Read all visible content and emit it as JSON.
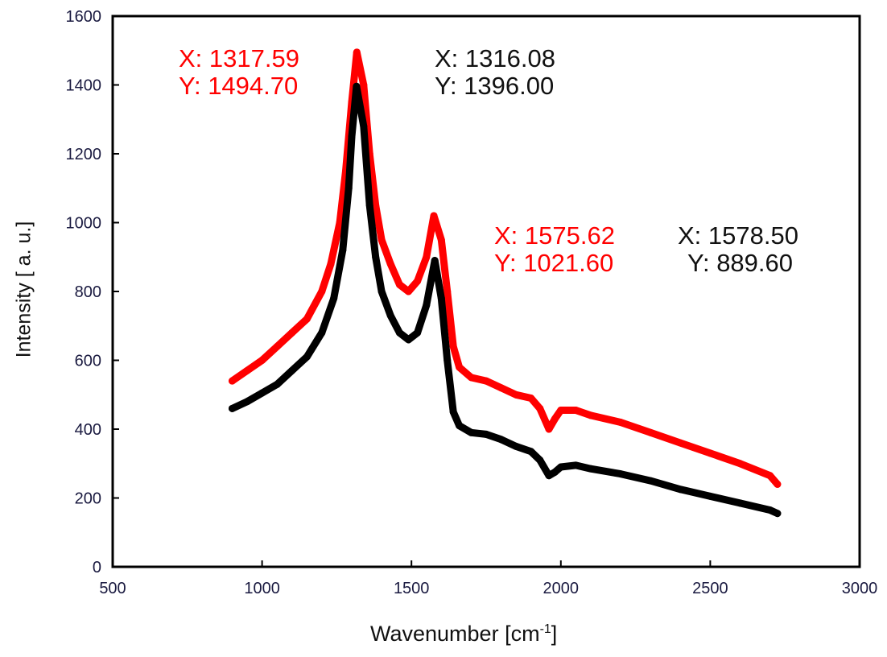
{
  "chart_data": {
    "type": "line",
    "title": "",
    "xlabel": "Wavenumber [cm",
    "xlabel_sup": "-1",
    "xlabel_end": "]",
    "ylabel": "Intensity [ a. u.]",
    "xlim": [
      500,
      3000
    ],
    "ylim": [
      0,
      1600
    ],
    "xticks": [
      "500",
      "1000",
      "1500",
      "2000",
      "2500",
      "3000"
    ],
    "yticks": [
      "0",
      "200",
      "400",
      "600",
      "800",
      "1000",
      "1200",
      "1400",
      "1600"
    ],
    "grid": false,
    "series": [
      {
        "name": "red",
        "color": "#ff0000",
        "x": [
          900,
          950,
          1000,
          1050,
          1100,
          1150,
          1200,
          1230,
          1260,
          1280,
          1300,
          1317,
          1340,
          1360,
          1380,
          1400,
          1430,
          1460,
          1490,
          1520,
          1550,
          1575,
          1600,
          1620,
          1640,
          1660,
          1700,
          1750,
          1800,
          1850,
          1900,
          1930,
          1960,
          1980,
          2000,
          2050,
          2100,
          2200,
          2300,
          2400,
          2500,
          2600,
          2700,
          2725
        ],
        "y": [
          540,
          570,
          600,
          640,
          680,
          720,
          800,
          880,
          1000,
          1150,
          1350,
          1495,
          1400,
          1200,
          1050,
          950,
          880,
          820,
          800,
          830,
          900,
          1020,
          950,
          800,
          640,
          580,
          550,
          540,
          520,
          500,
          490,
          460,
          400,
          430,
          455,
          455,
          440,
          420,
          390,
          360,
          330,
          300,
          265,
          240
        ]
      },
      {
        "name": "black",
        "color": "#000000",
        "x": [
          900,
          950,
          1000,
          1050,
          1100,
          1150,
          1200,
          1240,
          1270,
          1290,
          1300,
          1316,
          1340,
          1360,
          1380,
          1400,
          1430,
          1460,
          1490,
          1520,
          1550,
          1578,
          1600,
          1620,
          1640,
          1660,
          1700,
          1750,
          1800,
          1850,
          1900,
          1930,
          1960,
          1980,
          2000,
          2050,
          2100,
          2200,
          2300,
          2400,
          2500,
          2600,
          2700,
          2725
        ],
        "y": [
          460,
          480,
          505,
          530,
          570,
          610,
          680,
          780,
          920,
          1100,
          1250,
          1396,
          1280,
          1050,
          900,
          800,
          730,
          680,
          660,
          680,
          760,
          890,
          780,
          600,
          450,
          410,
          390,
          385,
          370,
          350,
          335,
          310,
          265,
          275,
          290,
          295,
          285,
          270,
          250,
          225,
          205,
          185,
          165,
          155
        ]
      }
    ],
    "annotations": [
      {
        "x_label": "X: 1317.59",
        "y_label": "Y: 1494.70",
        "color": "#ff0000"
      },
      {
        "x_label": "X: 1316.08",
        "y_label": "Y: 1396.00",
        "color": "#000000"
      },
      {
        "x_label": "X: 1575.62",
        "y_label": "Y: 1021.60",
        "color": "#ff0000"
      },
      {
        "x_label": "X: 1578.50",
        "y_label": "Y: 889.60",
        "color": "#000000"
      }
    ]
  }
}
